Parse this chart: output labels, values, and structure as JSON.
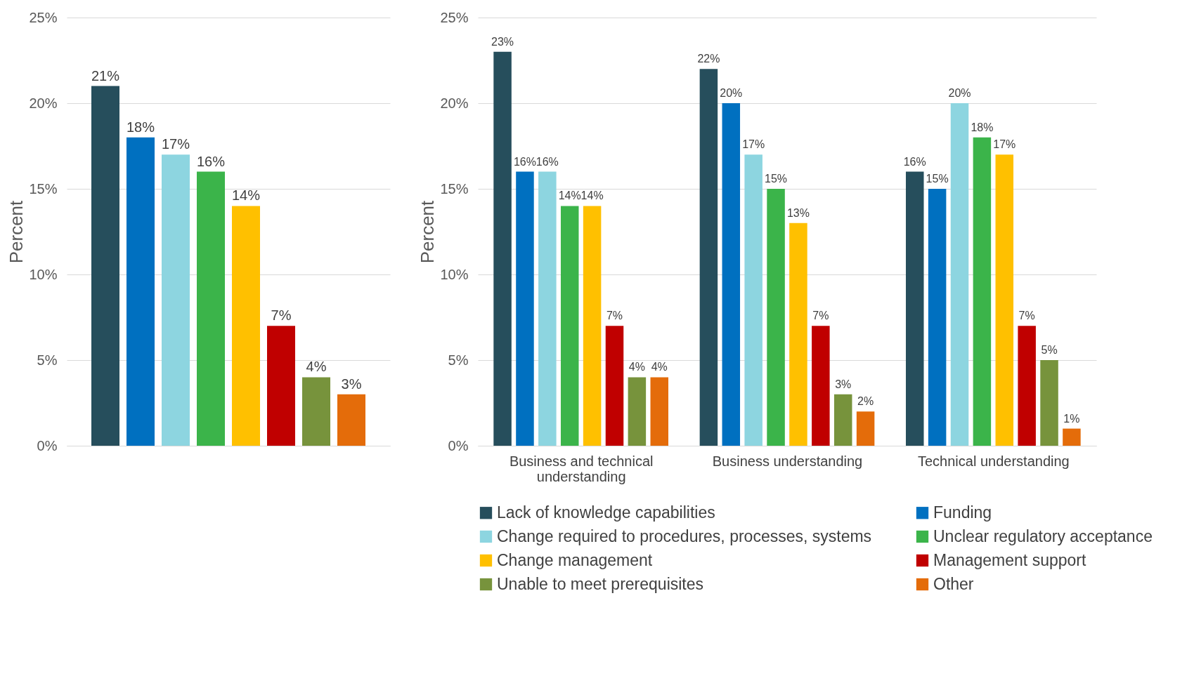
{
  "chart_data": [
    {
      "type": "bar",
      "ylabel": "Percent",
      "categories": [
        null
      ],
      "ylim": [
        0,
        25
      ],
      "yticks": [
        {
          "value": 0,
          "label": "0%"
        },
        {
          "value": 5,
          "label": "5%"
        },
        {
          "value": 10,
          "label": "10%"
        },
        {
          "value": 15,
          "label": "15%"
        },
        {
          "value": 20,
          "label": "20%"
        },
        {
          "value": 25,
          "label": "25%"
        }
      ],
      "grid": "y",
      "series": [
        {
          "color": "#264e5c",
          "values": [
            21
          ],
          "value_labels": [
            "21%"
          ]
        },
        {
          "color": "#0070c0",
          "values": [
            18
          ],
          "value_labels": [
            "18%"
          ]
        },
        {
          "color": "#8dd5e0",
          "values": [
            17
          ],
          "value_labels": [
            "17%"
          ]
        },
        {
          "color": "#3bb44a",
          "values": [
            16
          ],
          "value_labels": [
            "16%"
          ]
        },
        {
          "color": "#ffc000",
          "values": [
            14
          ],
          "value_labels": [
            "14%"
          ]
        },
        {
          "color": "#c00000",
          "values": [
            7
          ],
          "value_labels": [
            "7%"
          ]
        },
        {
          "color": "#77933c",
          "values": [
            4
          ],
          "value_labels": [
            "4%"
          ]
        },
        {
          "color": "#e46c0a",
          "values": [
            3
          ],
          "value_labels": [
            "3%"
          ]
        }
      ]
    },
    {
      "type": "bar",
      "ylabel": "Percent",
      "categories": [
        "Business and technical understanding",
        "Business understanding",
        "Technical understanding"
      ],
      "ylim": [
        0,
        25
      ],
      "yticks": [
        {
          "value": 0,
          "label": "0%"
        },
        {
          "value": 5,
          "label": "5%"
        },
        {
          "value": 10,
          "label": "10%"
        },
        {
          "value": 15,
          "label": "15%"
        },
        {
          "value": 20,
          "label": "20%"
        },
        {
          "value": 25,
          "label": "25%"
        }
      ],
      "grid": "y",
      "legend": "bottom",
      "series": [
        {
          "name": "Lack of knowledge capabilities",
          "color": "#264e5c",
          "values": [
            23,
            22,
            16
          ],
          "value_labels": [
            "23%",
            "22%",
            "16%"
          ]
        },
        {
          "name": "Funding",
          "color": "#0070c0",
          "values": [
            16,
            20,
            15
          ],
          "value_labels": [
            "16%",
            "20%",
            "15%"
          ]
        },
        {
          "name": "Change required to procedures, processes, systems",
          "color": "#8dd5e0",
          "values": [
            16,
            17,
            20
          ],
          "value_labels": [
            "16%",
            "17%",
            "20%"
          ]
        },
        {
          "name": "Unclear regulatory acceptance",
          "color": "#3bb44a",
          "values": [
            14,
            15,
            18
          ],
          "value_labels": [
            "14%",
            "15%",
            "18%"
          ]
        },
        {
          "name": "Change management",
          "color": "#ffc000",
          "values": [
            14,
            13,
            17
          ],
          "value_labels": [
            "14%",
            "13%",
            "17%"
          ]
        },
        {
          "name": "Management support",
          "color": "#c00000",
          "values": [
            7,
            7,
            7
          ],
          "value_labels": [
            "7%",
            "7%",
            "7%"
          ]
        },
        {
          "name": "Unable to meet prerequisites",
          "color": "#77933c",
          "values": [
            4,
            3,
            5
          ],
          "value_labels": [
            "4%",
            "3%",
            "5%"
          ]
        },
        {
          "name": "Other",
          "color": "#e46c0a",
          "values": [
            4,
            2,
            1
          ],
          "value_labels": [
            "4%",
            "2%",
            "1%"
          ]
        }
      ]
    }
  ]
}
